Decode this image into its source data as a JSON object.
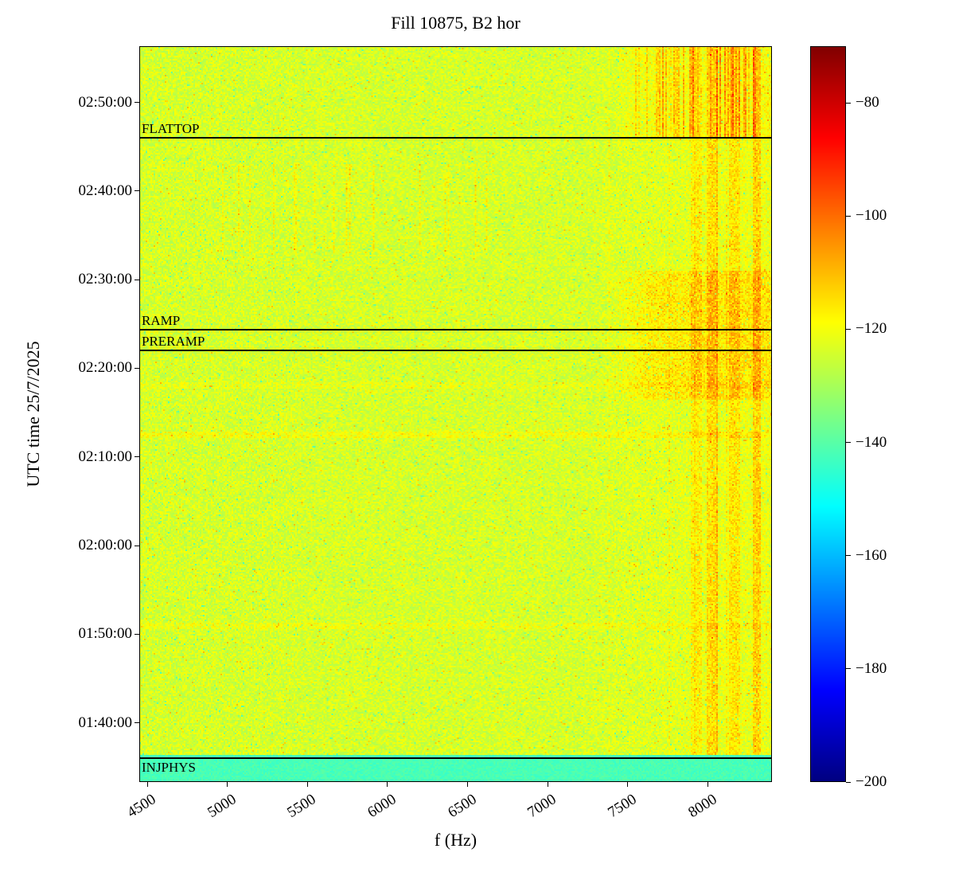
{
  "chart_data": {
    "type": "heatmap",
    "title": "Fill 10875, B2 hor",
    "xlabel": "f (Hz)",
    "ylabel": "UTC time 25/7/2025",
    "x": {
      "min_hz": 4450,
      "max_hz": 8400,
      "ticks_hz": [
        4500,
        5000,
        5500,
        6000,
        6500,
        7000,
        7500,
        8000
      ]
    },
    "y": {
      "date": "25/7/2025",
      "start": "01:33:20",
      "end": "02:56:20",
      "ticks": [
        "01:40:00",
        "01:50:00",
        "02:00:00",
        "02:10:00",
        "02:20:00",
        "02:30:00",
        "02:40:00",
        "02:50:00"
      ]
    },
    "colorbar": {
      "colormap": "jet",
      "min_db": -200,
      "max_db": -70,
      "ticks_db": [
        -80,
        -100,
        -120,
        -140,
        -160,
        -180,
        -200
      ]
    },
    "events": [
      {
        "label": "FLATTOP",
        "time": "02:46:00",
        "label_side": "above"
      },
      {
        "label": "RAMP",
        "time": "02:24:20",
        "label_side": "above"
      },
      {
        "label": "PRERAMP",
        "time": "02:22:00",
        "label_side": "above"
      },
      {
        "label": "INJPHYS",
        "time": "01:36:00",
        "label_side": "below"
      }
    ],
    "texture": {
      "background_db": -124,
      "noise_db": 10,
      "seed": 20250725,
      "injection_band": {
        "end_time": "01:36:20",
        "level_db": -142
      },
      "high_freq_bands_hz": [
        [
          7890,
          7960,
          6
        ],
        [
          7990,
          8060,
          9
        ],
        [
          8130,
          8200,
          7
        ],
        [
          8280,
          8330,
          10
        ]
      ],
      "flattop_streaks": {
        "f_min_hz": 7550,
        "f_max_hz": 8350,
        "boost_db": 14
      },
      "ramp_cloud": {
        "t_start": "02:16:30",
        "t_end": "02:31:00",
        "f_min_hz": 7350,
        "boost_db": 7
      },
      "mid_streaks": {
        "t_start": "02:33:00",
        "t_end": "02:43:00",
        "f_min_hz": 4950,
        "f_max_hz": 6650,
        "boost_db": 6
      },
      "warm_rows": [
        {
          "time": "02:12:30",
          "boost_db": 4
        },
        {
          "time": "01:51:00",
          "boost_db": 3
        },
        {
          "time": "02:18:00",
          "boost_db": 2
        }
      ]
    }
  }
}
